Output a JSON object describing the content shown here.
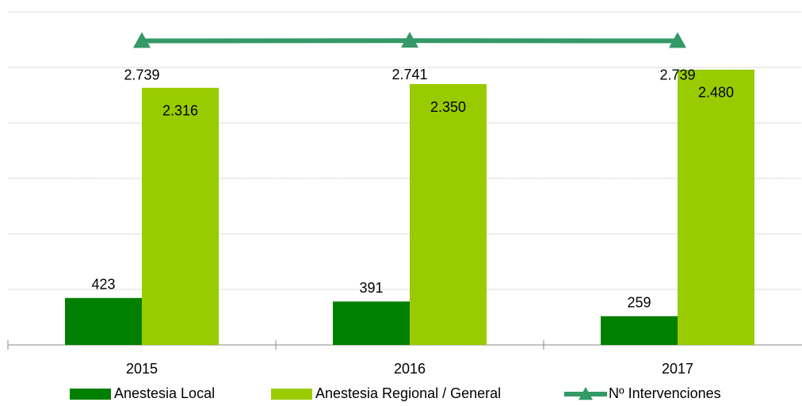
{
  "chart_data": {
    "type": "bar",
    "categories": [
      "2015",
      "2016",
      "2017"
    ],
    "series": [
      {
        "name": "Anestesia Local",
        "color": "#008000",
        "values": [
          423,
          391,
          259
        ],
        "value_labels": [
          "423",
          "391",
          "259"
        ]
      },
      {
        "name": "Anestesia Regional / General",
        "color": "#99cc00",
        "values": [
          2316,
          2350,
          2480
        ],
        "value_labels": [
          "2.316",
          "2.350",
          "2.480"
        ]
      },
      {
        "name": "Nº Intervenciones",
        "type": "line",
        "color": "#339966",
        "values": [
          2739,
          2741,
          2739
        ],
        "value_labels": [
          "2.739",
          "2.741",
          "2.739"
        ]
      }
    ],
    "ylim": [
      0,
      3000
    ],
    "yticks": [
      0,
      500,
      1000,
      1500,
      2000,
      2500,
      3000
    ],
    "grid": true,
    "legend": "bottom"
  }
}
